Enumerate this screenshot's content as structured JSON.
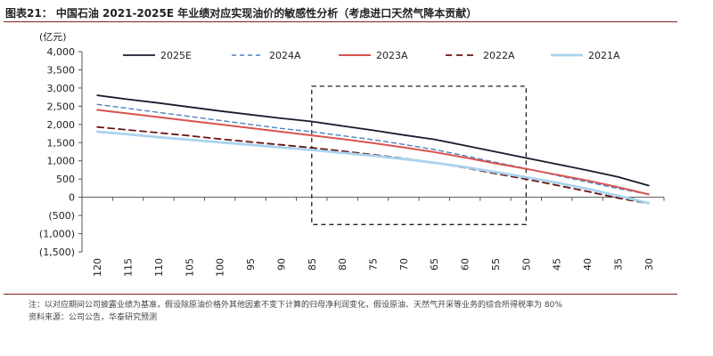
{
  "header": {
    "title": "图表21：  中国石油 2021-2025E 年业绩对应实现油价的敏感性分析（考虑进口天然气降本贡献）"
  },
  "chart_data": {
    "type": "line",
    "unit_label": "(亿元)",
    "x": [
      120,
      115,
      110,
      105,
      100,
      95,
      90,
      85,
      80,
      75,
      70,
      65,
      60,
      55,
      50,
      45,
      40,
      35,
      30
    ],
    "x_tick_labels": [
      "120",
      "115",
      "110",
      "105",
      "100",
      "95",
      "90",
      "85",
      "80",
      "75",
      "70",
      "65",
      "60",
      "55",
      "50",
      "45",
      "40",
      "35",
      "30"
    ],
    "y_tick_labels": [
      "4,000",
      "3,500",
      "3,000",
      "2,500",
      "2,000",
      "1,500",
      "1,000",
      "500",
      "0",
      "(500)",
      "(1,000)",
      "(1,500)"
    ],
    "y_ticks": [
      4000,
      3500,
      3000,
      2500,
      2000,
      1500,
      1000,
      500,
      0,
      -500,
      -1000,
      -1500
    ],
    "ylim": [
      -1500,
      4000
    ],
    "xlabel": "",
    "ylabel": "",
    "legend_position": "top",
    "grid": false,
    "series": [
      {
        "name": "2025E",
        "color": "#1a1a2e",
        "dash": "solid",
        "width": 1.8,
        "values": [
          2800,
          2690,
          2590,
          2480,
          2370,
          2270,
          2170,
          2080,
          1960,
          1840,
          1710,
          1590,
          1420,
          1250,
          1080,
          910,
          740,
          560,
          320
        ]
      },
      {
        "name": "2024A",
        "color": "#4f81bd",
        "dash": "dashed",
        "width": 1.4,
        "values": [
          2550,
          2440,
          2330,
          2220,
          2110,
          2000,
          1890,
          1800,
          1690,
          1580,
          1450,
          1310,
          1140,
          960,
          790,
          600,
          420,
          240,
          80
        ]
      },
      {
        "name": "2023A",
        "color": "#d9534f",
        "dash": "solid",
        "width": 2.0,
        "values": [
          2400,
          2300,
          2200,
          2100,
          2000,
          1900,
          1800,
          1700,
          1600,
          1490,
          1370,
          1240,
          1090,
          930,
          780,
          620,
          460,
          280,
          80
        ]
      },
      {
        "name": "2022A",
        "color": "#6b1212",
        "dash": "dashed",
        "width": 1.8,
        "values": [
          1930,
          1850,
          1770,
          1690,
          1600,
          1520,
          1440,
          1360,
          1270,
          1170,
          1070,
          950,
          810,
          650,
          500,
          330,
          160,
          -20,
          -170
        ]
      },
      {
        "name": "2021A",
        "color": "#a9d3ee",
        "dash": "solid",
        "width": 2.8,
        "values": [
          1800,
          1730,
          1650,
          1580,
          1510,
          1440,
          1370,
          1300,
          1220,
          1140,
          1050,
          950,
          830,
          690,
          550,
          400,
          230,
          40,
          -160
        ]
      }
    ],
    "highlight_box": {
      "x_from": 85,
      "x_to": 50,
      "y_from": -750,
      "y_to": 3050
    }
  },
  "footer": {
    "note": "注：以对应期间公司披露业绩为基准，假设除原油价格外其他因素不变下计算的归母净利润变化，假设原油、天然气开采等业务的综合所得税率为 80%",
    "source": "资料来源：公司公告，华泰研究预测"
  }
}
